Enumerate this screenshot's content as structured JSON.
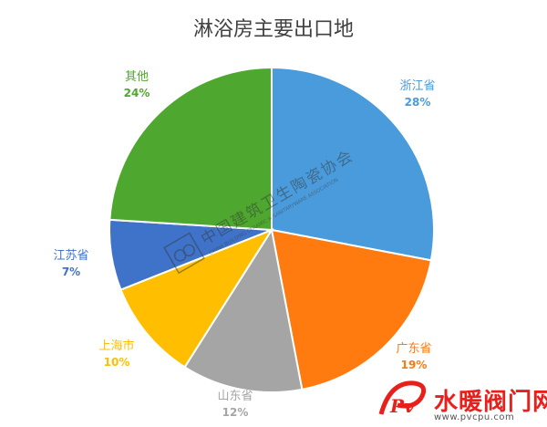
{
  "chart_data": {
    "type": "pie",
    "title": "淋浴房主要出口地",
    "slices": [
      {
        "label": "浙江省",
        "value": 28,
        "display": "28%",
        "color": "#4A9BDB"
      },
      {
        "label": "广东省",
        "value": 19,
        "display": "19%",
        "color": "#FF7A0F"
      },
      {
        "label": "山东省",
        "value": 12,
        "display": "12%",
        "color": "#A5A5A5"
      },
      {
        "label": "上海市",
        "value": 10,
        "display": "10%",
        "color": "#FFBF00"
      },
      {
        "label": "江苏省",
        "value": 7,
        "display": "7%",
        "color": "#3F73C9"
      },
      {
        "label": "其他",
        "value": 24,
        "display": "24%",
        "color": "#4EA72E"
      }
    ],
    "start_angle_deg": 0,
    "direction": "clockwise"
  },
  "watermark": {
    "cn": "中国建筑卫生陶瓷协会",
    "en": "CHINA BUILDING CERAMIC & SANITARYWARE ASSOCIATION"
  },
  "site_logo": {
    "cn": "水暖阀门网",
    "url": "www.pvcpu.com"
  }
}
